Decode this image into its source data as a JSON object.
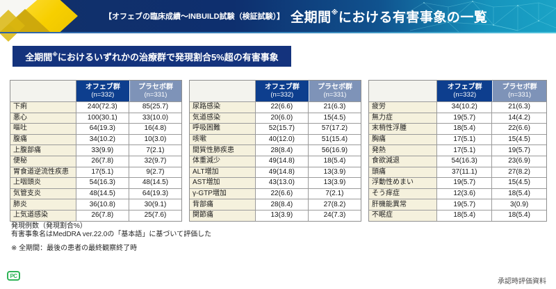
{
  "header": {
    "subtitle": "【オフェブの臨床成績〜INBUILD試験（検証試験）】",
    "title_pre": "全期間",
    "title_sup": "※",
    "title_post": "における有害事象の一覧"
  },
  "subheader": {
    "pre": "全期間",
    "sup": "※",
    "post": "におけるいずれかの治療群で発現割合5%超の有害事象"
  },
  "columns": {
    "ofev_label": "オフェブ群",
    "ofev_n": "(n=332)",
    "placebo_label": "プラセボ群",
    "placebo_n": "(n=331)"
  },
  "tables": [
    {
      "rows": [
        [
          "下痢",
          "240(72.3)",
          "85(25.7)"
        ],
        [
          "悪心",
          "100(30.1)",
          "33(10.0)"
        ],
        [
          "嘔吐",
          "64(19.3)",
          "16(4.8)"
        ],
        [
          "腹痛",
          "34(10.2)",
          "10(3.0)"
        ],
        [
          "上腹部痛",
          "33(9.9)",
          "7(2.1)"
        ],
        [
          "便秘",
          "26(7.8)",
          "32(9.7)"
        ],
        [
          "胃食道逆流性疾患",
          "17(5.1)",
          "9(2.7)"
        ],
        [
          "上咽頭炎",
          "54(16.3)",
          "48(14.5)"
        ],
        [
          "気管支炎",
          "48(14.5)",
          "64(19.3)"
        ],
        [
          "肺炎",
          "36(10.8)",
          "30(9.1)"
        ],
        [
          "上気道感染",
          "26(7.8)",
          "25(7.6)"
        ]
      ]
    },
    {
      "rows": [
        [
          "尿路感染",
          "22(6.6)",
          "21(6.3)"
        ],
        [
          "気道感染",
          "20(6.0)",
          "15(4.5)"
        ],
        [
          "呼吸困難",
          "52(15.7)",
          "57(17.2)"
        ],
        [
          "咳嗽",
          "40(12.0)",
          "51(15.4)"
        ],
        [
          "間質性肺疾患",
          "28(8.4)",
          "56(16.9)"
        ],
        [
          "体重減少",
          "49(14.8)",
          "18(5.4)"
        ],
        [
          "ALT増加",
          "49(14.8)",
          "13(3.9)"
        ],
        [
          "AST増加",
          "43(13.0)",
          "13(3.9)"
        ],
        [
          "γ-GTP増加",
          "22(6.6)",
          "7(2.1)"
        ],
        [
          "背部痛",
          "28(8.4)",
          "27(8.2)"
        ],
        [
          "関節痛",
          "13(3.9)",
          "24(7.3)"
        ]
      ]
    },
    {
      "rows": [
        [
          "疲労",
          "34(10.2)",
          "21(6.3)"
        ],
        [
          "無力症",
          "19(5.7)",
          "14(4.2)"
        ],
        [
          "末梢性浮腫",
          "18(5.4)",
          "22(6.6)"
        ],
        [
          "胸痛",
          "17(5.1)",
          "15(4.5)"
        ],
        [
          "発熱",
          "17(5.1)",
          "19(5.7)"
        ],
        [
          "食欲減退",
          "54(16.3)",
          "23(6.9)"
        ],
        [
          "頭痛",
          "37(11.1)",
          "27(8.2)"
        ],
        [
          "浮動性めまい",
          "19(5.7)",
          "15(4.5)"
        ],
        [
          "そう痒症",
          "12(3.6)",
          "18(5.4)"
        ],
        [
          "肝機能異常",
          "19(5.7)",
          "3(0.9)"
        ],
        [
          "不眠症",
          "18(5.4)",
          "18(5.4)"
        ]
      ]
    }
  ],
  "notes": {
    "line1": "発現例数（発現割合%）",
    "line2": "有害事象名はMedDRA ver.22.0の「基本語」に基づいて評価した",
    "line3": "※ 全期間：最後の患者の最終観察終了時"
  },
  "footer": {
    "logo": "PC",
    "approval": "承認時評価資料"
  },
  "colors": {
    "header_navy": "#0e2f6e",
    "header_cyan": "#1aa3c6",
    "accent_yellow": "#f7cf00",
    "subheader_bg": "#14337d",
    "ofev_header_bg": "#0d3e8e",
    "placebo_header_bg": "#7e93b8",
    "label_cell_bg": "#f5f1dd",
    "logo_green": "#2fb457"
  }
}
